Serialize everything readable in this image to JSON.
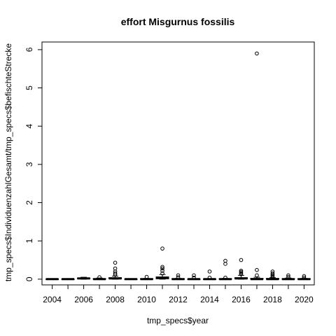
{
  "chart_data": {
    "type": "boxplot",
    "title": "effort Misgurnus fossilis",
    "xlabel": "tmp_specs$year",
    "ylabel": "tmp_specs$IndividuenzahlGesamt/tmp_specs$befischteStrecke",
    "ylim": [
      -0.15,
      6.2
    ],
    "yticks": [
      "0",
      "1",
      "2",
      "3",
      "4",
      "5",
      "6"
    ],
    "x_tick_labels": [
      "2004",
      "2006",
      "2008",
      "2010",
      "2012",
      "2014",
      "2016",
      "2018",
      "2020"
    ],
    "grid": false,
    "legend": "none",
    "categories": [
      "2004",
      "2005",
      "2006",
      "2007",
      "2008",
      "2009",
      "2010",
      "2011",
      "2012",
      "2013",
      "2014",
      "2015",
      "2016",
      "2017",
      "2018",
      "2019",
      "2020"
    ],
    "boxes": [
      {
        "year": "2004",
        "q1": 0,
        "median": 0,
        "q3": 0,
        "whisker_low": 0,
        "whisker_high": 0,
        "outliers": []
      },
      {
        "year": "2005",
        "q1": 0,
        "median": 0,
        "q3": 0,
        "whisker_low": 0,
        "whisker_high": 0,
        "outliers": []
      },
      {
        "year": "2006",
        "q1": 0.01,
        "median": 0.02,
        "q3": 0.03,
        "whisker_low": 0,
        "whisker_high": 0.05,
        "outliers": []
      },
      {
        "year": "2007",
        "q1": 0,
        "median": 0,
        "q3": 0.01,
        "whisker_low": 0,
        "whisker_high": 0.03,
        "outliers": [
          0.05
        ]
      },
      {
        "year": "2008",
        "q1": 0.01,
        "median": 0.02,
        "q3": 0.04,
        "whisker_low": 0,
        "whisker_high": 0.08,
        "outliers": [
          0.12,
          0.15,
          0.2,
          0.28,
          0.43
        ]
      },
      {
        "year": "2009",
        "q1": 0,
        "median": 0,
        "q3": 0,
        "whisker_low": 0,
        "whisker_high": 0,
        "outliers": []
      },
      {
        "year": "2010",
        "q1": 0,
        "median": 0,
        "q3": 0.01,
        "whisker_low": 0,
        "whisker_high": 0.02,
        "outliers": [
          0.06
        ]
      },
      {
        "year": "2011",
        "q1": 0.01,
        "median": 0.03,
        "q3": 0.06,
        "whisker_low": 0,
        "whisker_high": 0.12,
        "outliers": [
          0.15,
          0.22,
          0.28,
          0.32,
          0.8
        ]
      },
      {
        "year": "2012",
        "q1": 0,
        "median": 0,
        "q3": 0.01,
        "whisker_low": 0,
        "whisker_high": 0.02,
        "outliers": [
          0.05,
          0.1
        ]
      },
      {
        "year": "2013",
        "q1": 0,
        "median": 0,
        "q3": 0,
        "whisker_low": 0,
        "whisker_high": 0,
        "outliers": [
          0.04,
          0.1
        ]
      },
      {
        "year": "2014",
        "q1": 0,
        "median": 0,
        "q3": 0,
        "whisker_low": 0,
        "whisker_high": 0,
        "outliers": [
          0.04,
          0.2
        ]
      },
      {
        "year": "2015",
        "q1": 0,
        "median": 0,
        "q3": 0.01,
        "whisker_low": 0,
        "whisker_high": 0.02,
        "outliers": [
          0.04,
          0.4,
          0.48
        ]
      },
      {
        "year": "2016",
        "q1": 0.01,
        "median": 0.02,
        "q3": 0.04,
        "whisker_low": 0,
        "whisker_high": 0.1,
        "outliers": [
          0.13,
          0.16,
          0.19,
          0.22,
          0.5
        ]
      },
      {
        "year": "2017",
        "q1": 0,
        "median": 0,
        "q3": 0.02,
        "whisker_low": 0,
        "whisker_high": 0.05,
        "outliers": [
          0.1,
          0.24,
          5.9
        ]
      },
      {
        "year": "2018",
        "q1": 0,
        "median": 0,
        "q3": 0.02,
        "whisker_low": 0,
        "whisker_high": 0.04,
        "outliers": [
          0.06,
          0.09,
          0.12,
          0.15,
          0.2
        ]
      },
      {
        "year": "2019",
        "q1": 0,
        "median": 0,
        "q3": 0.01,
        "whisker_low": 0,
        "whisker_high": 0.03,
        "outliers": [
          0.06,
          0.1
        ]
      },
      {
        "year": "2020",
        "q1": 0,
        "median": 0,
        "q3": 0.01,
        "whisker_low": 0,
        "whisker_high": 0.02,
        "outliers": [
          0.04,
          0.08
        ]
      }
    ]
  }
}
